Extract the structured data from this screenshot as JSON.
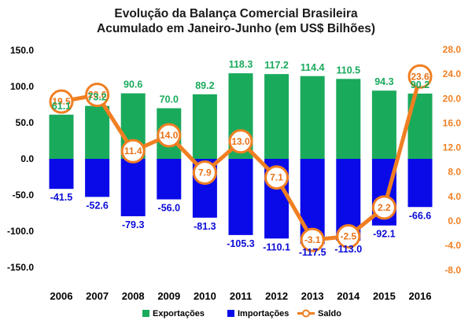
{
  "chart_data": {
    "type": "bar",
    "title": "Evolução da Balança Comercial Brasileira",
    "subtitle": "Acumulado em Janeiro-Junho (em US$ Bilhões)",
    "categories": [
      "2006",
      "2007",
      "2008",
      "2009",
      "2010",
      "2011",
      "2012",
      "2013",
      "2014",
      "2015",
      "2016"
    ],
    "series": [
      {
        "name": "Exportações",
        "type": "bar",
        "axis": "left",
        "color": "#1aaa5c",
        "values": [
          61.1,
          73.2,
          90.6,
          70.0,
          89.2,
          118.3,
          117.2,
          114.4,
          110.5,
          94.3,
          90.2
        ],
        "labels": [
          "61.1",
          "73.2",
          "90.6",
          "70.0",
          "89.2",
          "118.3",
          "117.2",
          "114.4",
          "110.5",
          "94.3",
          "90.2"
        ]
      },
      {
        "name": "Importações",
        "type": "bar",
        "axis": "left",
        "color": "#0a0ae8",
        "values": [
          -41.5,
          -52.6,
          -79.3,
          -56.0,
          -81.3,
          -105.3,
          -110.1,
          -117.5,
          -113.0,
          -92.1,
          -66.6
        ],
        "labels": [
          "-41.5",
          "-52.6",
          "-79.3",
          "-56.0",
          "-81.3",
          "-105.3",
          "-110.1",
          "-117.5",
          "-113.0",
          "-92.1",
          "-66.6"
        ]
      },
      {
        "name": "Saldo",
        "type": "line",
        "axis": "right",
        "color": "#f07f22",
        "values": [
          19.5,
          20.6,
          11.4,
          14.0,
          7.9,
          13.0,
          7.1,
          -3.1,
          -2.5,
          2.2,
          23.6
        ],
        "labels": [
          "19.5",
          "20.6",
          "11.4",
          "14.0",
          "7.9",
          "13.0",
          "7.1",
          "-3.1",
          "-2.5",
          "2.2",
          "23.6"
        ]
      }
    ],
    "y_left": {
      "ylim": [
        -150,
        150
      ],
      "ticks": [
        "150.0",
        "100.0",
        "50.0",
        "0.0",
        "-50.0",
        "-100.0",
        "-150.0"
      ],
      "tick_values": [
        150,
        100,
        50,
        0,
        -50,
        -100,
        -150
      ]
    },
    "y_right": {
      "ylim": [
        -8,
        28
      ],
      "ticks": [
        "28.0",
        "24.0",
        "20.0",
        "16.0",
        "12.0",
        "8.0",
        "4.0",
        "0.0",
        "-4.0",
        "-8.0"
      ],
      "tick_values": [
        28,
        24,
        20,
        16,
        12,
        8,
        4,
        0,
        -4,
        -8
      ]
    },
    "grid": false,
    "legend_position": "bottom",
    "legend": [
      "Exportações",
      "Importações",
      "Saldo"
    ]
  }
}
